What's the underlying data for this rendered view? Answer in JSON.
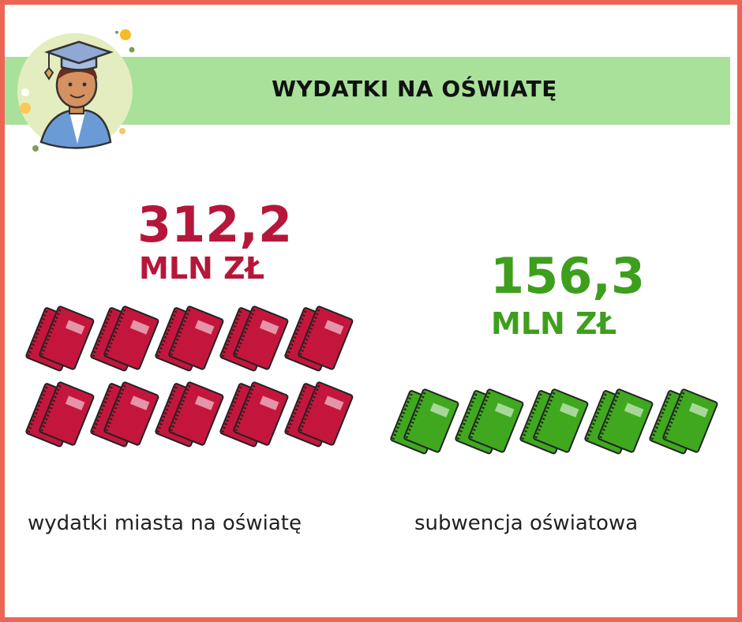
{
  "header": {
    "title": "WYDATKI NA OŚWIATĘ",
    "icon": "graduate-avatar-icon"
  },
  "colors": {
    "border": "#ec6454",
    "band": "#a9e19b",
    "red": "#b5173a",
    "green": "#3d9f1c",
    "red_icon": "#c4163c",
    "green_icon": "#3fa81e"
  },
  "chart_data": {
    "type": "pictogram",
    "series": [
      {
        "value_text": "312,2",
        "unit": "MLN ZŁ",
        "value": 312.2,
        "label": "wydatki miasta na oświatę",
        "icon": "notebook-icon",
        "icon_count": 10,
        "color": "#c4163c"
      },
      {
        "value_text": "156,3",
        "unit": "MLN ZŁ",
        "value": 156.3,
        "label": "subwencja oświatowa",
        "icon": "notebook-icon",
        "icon_count": 5,
        "color": "#3fa81e"
      }
    ]
  }
}
